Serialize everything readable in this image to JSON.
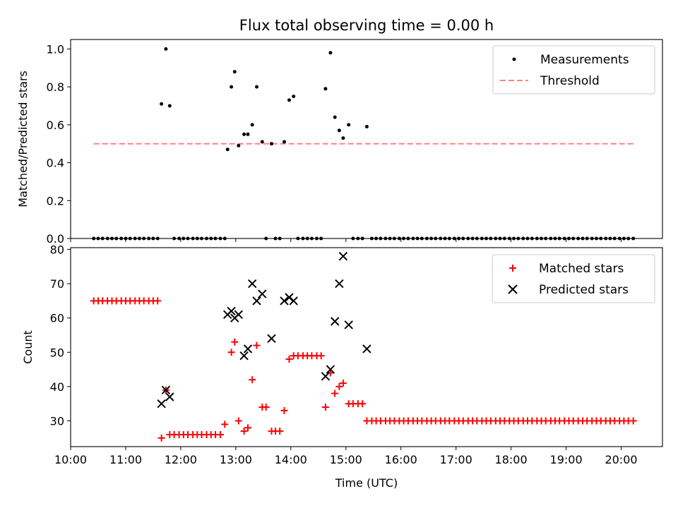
{
  "chart_data": [
    {
      "type": "scatter",
      "title": "Flux total observing time = 0.00 h",
      "xlabel": "",
      "ylabel": "Matched/Predicted stars",
      "xlim": [
        10.0,
        20.75
      ],
      "ylim": [
        0.0,
        1.05
      ],
      "yticks": [
        0.0,
        0.2,
        0.4,
        0.6,
        0.8,
        1.0
      ],
      "ytick_labels": [
        "0.0",
        "0.2",
        "0.4",
        "0.6",
        "0.8",
        "1.0"
      ],
      "legend_position": "top-right",
      "series": [
        {
          "name": "Measurements",
          "kind": "scatter",
          "color": "#000000",
          "x": [
            10.42,
            10.5,
            10.58,
            10.67,
            10.75,
            10.83,
            10.92,
            11.0,
            11.08,
            11.17,
            11.25,
            11.33,
            11.42,
            11.5,
            11.58,
            11.65,
            11.73,
            11.8,
            11.88,
            11.97,
            12.05,
            12.13,
            12.22,
            12.3,
            12.38,
            12.47,
            12.55,
            12.63,
            12.72,
            12.8,
            12.85,
            12.92,
            12.98,
            13.05,
            13.15,
            13.22,
            13.3,
            13.38,
            13.48,
            13.55,
            13.65,
            13.72,
            13.8,
            13.88,
            13.97,
            14.05,
            14.13,
            14.22,
            14.3,
            14.38,
            14.47,
            14.55,
            14.63,
            14.72,
            14.8,
            14.88,
            14.95,
            15.05,
            15.13,
            15.22,
            15.3,
            15.38,
            15.47,
            15.55,
            15.63,
            15.72,
            15.8,
            15.88,
            15.97,
            16.05,
            16.13,
            16.22,
            16.3,
            16.38,
            16.47,
            16.55,
            16.63,
            16.72,
            16.8,
            16.88,
            16.97,
            17.05,
            17.13,
            17.22,
            17.3,
            17.38,
            17.47,
            17.55,
            17.63,
            17.72,
            17.8,
            17.88,
            17.97,
            18.05,
            18.13,
            18.22,
            18.3,
            18.38,
            18.47,
            18.55,
            18.63,
            18.72,
            18.8,
            18.88,
            18.97,
            19.05,
            19.13,
            19.22,
            19.3,
            19.38,
            19.47,
            19.55,
            19.63,
            19.72,
            19.8,
            19.88,
            19.97,
            20.05,
            20.13,
            20.22
          ],
          "y": [
            0,
            0,
            0,
            0,
            0,
            0,
            0,
            0,
            0,
            0,
            0,
            0,
            0,
            0,
            0,
            0.71,
            1.0,
            0.7,
            0,
            0,
            0,
            0,
            0,
            0,
            0,
            0,
            0,
            0,
            0,
            0,
            0.47,
            0.8,
            0.88,
            0.49,
            0.55,
            0.55,
            0.6,
            0.8,
            0.51,
            0,
            0.5,
            0,
            0,
            0.51,
            0.73,
            0.75,
            0,
            0,
            0,
            0,
            0,
            0,
            0.79,
            0.98,
            0.64,
            0.57,
            0.53,
            0.6,
            0,
            0,
            0,
            0.59,
            0,
            0,
            0,
            0,
            0,
            0,
            0,
            0,
            0,
            0,
            0,
            0,
            0,
            0,
            0,
            0,
            0,
            0,
            0,
            0,
            0,
            0,
            0,
            0,
            0,
            0,
            0,
            0,
            0,
            0,
            0,
            0,
            0,
            0,
            0,
            0,
            0,
            0,
            0,
            0,
            0,
            0,
            0,
            0,
            0,
            0,
            0,
            0,
            0,
            0,
            0,
            0,
            0,
            0,
            0,
            0,
            0,
            0
          ]
        },
        {
          "name": "Threshold",
          "kind": "line",
          "style": "dashed",
          "color": "#ff8080",
          "x": [
            10.42,
            20.22
          ],
          "y": [
            0.5,
            0.5
          ]
        }
      ]
    },
    {
      "type": "scatter",
      "title": "",
      "xlabel": "Time (UTC)",
      "ylabel": "Count",
      "xlim": [
        10.0,
        20.75
      ],
      "ylim": [
        22.5,
        80.5
      ],
      "xticks": [
        10,
        11,
        12,
        13,
        14,
        15,
        16,
        17,
        18,
        19,
        20
      ],
      "xtick_labels": [
        "10:00",
        "11:00",
        "12:00",
        "13:00",
        "14:00",
        "15:00",
        "16:00",
        "17:00",
        "18:00",
        "19:00",
        "20:00"
      ],
      "yticks": [
        30,
        40,
        50,
        60,
        70,
        80
      ],
      "ytick_labels": [
        "30",
        "40",
        "50",
        "60",
        "70",
        "80"
      ],
      "legend_position": "top-right",
      "series": [
        {
          "name": "Matched stars",
          "marker": "plus",
          "color": "#ff0000",
          "x": [
            10.42,
            10.5,
            10.58,
            10.67,
            10.75,
            10.83,
            10.92,
            11.0,
            11.08,
            11.17,
            11.25,
            11.33,
            11.42,
            11.5,
            11.58,
            11.65,
            11.73,
            11.8,
            11.88,
            11.97,
            12.05,
            12.13,
            12.22,
            12.3,
            12.38,
            12.47,
            12.55,
            12.63,
            12.72,
            12.8,
            12.92,
            12.98,
            13.05,
            13.15,
            13.22,
            13.3,
            13.38,
            13.48,
            13.55,
            13.65,
            13.72,
            13.8,
            13.88,
            13.97,
            14.05,
            14.13,
            14.22,
            14.3,
            14.38,
            14.47,
            14.55,
            14.63,
            14.72,
            14.8,
            14.88,
            14.95,
            15.05,
            15.13,
            15.22,
            15.3,
            15.38,
            15.47,
            15.55,
            15.63,
            15.72,
            15.8,
            15.88,
            15.97,
            16.05,
            16.13,
            16.22,
            16.3,
            16.38,
            16.47,
            16.55,
            16.63,
            16.72,
            16.8,
            16.88,
            16.97,
            17.05,
            17.13,
            17.22,
            17.3,
            17.38,
            17.47,
            17.55,
            17.63,
            17.72,
            17.8,
            17.88,
            17.97,
            18.05,
            18.13,
            18.22,
            18.3,
            18.38,
            18.47,
            18.55,
            18.63,
            18.72,
            18.8,
            18.88,
            18.97,
            19.05,
            19.13,
            19.22,
            19.3,
            19.38,
            19.47,
            19.55,
            19.63,
            19.72,
            19.8,
            19.88,
            19.97,
            20.05,
            20.13,
            20.22
          ],
          "y": [
            65,
            65,
            65,
            65,
            65,
            65,
            65,
            65,
            65,
            65,
            65,
            65,
            65,
            65,
            65,
            25,
            39,
            26,
            26,
            26,
            26,
            26,
            26,
            26,
            26,
            26,
            26,
            26,
            26,
            29,
            50,
            53,
            30,
            27,
            28,
            42,
            52,
            34,
            34,
            27,
            27,
            27,
            33,
            48,
            49,
            49,
            49,
            49,
            49,
            49,
            49,
            34,
            44,
            38,
            40,
            41,
            35,
            35,
            35,
            35,
            30,
            30,
            30,
            30,
            30,
            30,
            30,
            30,
            30,
            30,
            30,
            30,
            30,
            30,
            30,
            30,
            30,
            30,
            30,
            30,
            30,
            30,
            30,
            30,
            30,
            30,
            30,
            30,
            30,
            30,
            30,
            30,
            30,
            30,
            30,
            30,
            30,
            30,
            30,
            30,
            30,
            30,
            30,
            30,
            30,
            30,
            30,
            30,
            30,
            30,
            30,
            30,
            30,
            30,
            30,
            30,
            30,
            30,
            30
          ]
        },
        {
          "name": "Predicted stars",
          "marker": "x",
          "color": "#000000",
          "x": [
            11.65,
            11.73,
            11.8,
            12.85,
            12.92,
            12.98,
            13.05,
            13.15,
            13.22,
            13.3,
            13.38,
            13.48,
            13.65,
            13.88,
            13.97,
            14.05,
            14.63,
            14.72,
            14.8,
            14.88,
            14.95,
            15.05,
            15.38
          ],
          "y": [
            35,
            39,
            37,
            61,
            62,
            60,
            61,
            49,
            51,
            70,
            65,
            67,
            54,
            65,
            66,
            65,
            43,
            45,
            59,
            70,
            78,
            58,
            51
          ]
        }
      ]
    }
  ],
  "legend_top": {
    "items": [
      "Measurements",
      "Threshold"
    ]
  },
  "legend_bottom": {
    "items": [
      "Matched stars",
      "Predicted stars"
    ]
  }
}
